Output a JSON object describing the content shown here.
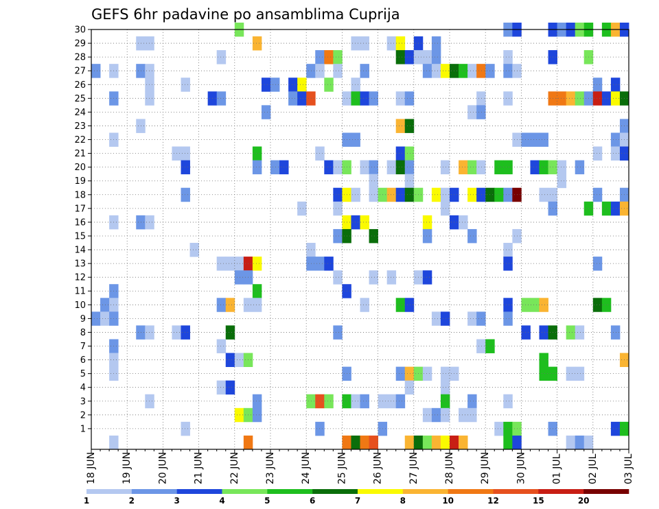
{
  "chart_data": {
    "type": "heatmap",
    "title": "GEFS 6hr padavine po ansamblima Cuprija",
    "xlabel": "",
    "ylabel": "",
    "x_tick_labels": [
      "18 JUN",
      "19 JUN",
      "20 JUN",
      "21 JUN",
      "22 JUN",
      "23 JUN",
      "24 JUN",
      "25 JUN",
      "26 JUN",
      "27 JUN",
      "28 JUN",
      "29 JUN",
      "30 JUN",
      "01 JUL",
      "02 JUL",
      "03 JUL"
    ],
    "y_tick_labels": [
      "1",
      "2",
      "3",
      "4",
      "5",
      "6",
      "7",
      "8",
      "9",
      "10",
      "11",
      "12",
      "13",
      "14",
      "15",
      "16",
      "17",
      "18",
      "19",
      "20",
      "21",
      "22",
      "23",
      "24",
      "25",
      "26",
      "27",
      "28",
      "29",
      "30"
    ],
    "time_steps_per_day": 4,
    "ylim": [
      0,
      30
    ],
    "grid": "dotted",
    "legend": {
      "position": "bottom",
      "labels": [
        "1",
        "2",
        "3",
        "4",
        "5",
        "6",
        "7",
        "8",
        "10",
        "12",
        "15",
        "20"
      ],
      "colors": [
        "#b4c8f0",
        "#6c96e6",
        "#1e46dc",
        "#78e65a",
        "#1ebe1e",
        "#0a6e0a",
        "#fafa00",
        "#fab432",
        "#f07814",
        "#e6501e",
        "#c81e14",
        "#780000"
      ]
    },
    "level_colors": [
      "#b4c8f0",
      "#6c96e6",
      "#1e46dc",
      "#78e65a",
      "#1ebe1e",
      "#0a6e0a",
      "#fafa00",
      "#fab432",
      "#f07814",
      "#e6501e",
      "#c81e14",
      "#780000"
    ],
    "note_cells": "each cell: [member (y), time step index from 18 JUN 00Z, color level index 0-11]",
    "cells": [
      [
        30,
        16,
        3
      ],
      [
        30,
        46,
        1
      ],
      [
        30,
        47,
        2
      ],
      [
        30,
        51,
        2
      ],
      [
        30,
        52,
        1
      ],
      [
        30,
        53,
        2
      ],
      [
        30,
        54,
        3
      ],
      [
        30,
        55,
        4
      ],
      [
        30,
        57,
        4
      ],
      [
        30,
        58,
        7
      ],
      [
        30,
        59,
        2
      ],
      [
        29,
        5,
        0
      ],
      [
        29,
        6,
        0
      ],
      [
        29,
        18,
        7
      ],
      [
        29,
        29,
        0
      ],
      [
        29,
        30,
        0
      ],
      [
        29,
        33,
        0
      ],
      [
        29,
        34,
        6
      ],
      [
        29,
        36,
        2
      ],
      [
        29,
        38,
        1
      ],
      [
        28,
        14,
        0
      ],
      [
        28,
        25,
        1
      ],
      [
        28,
        26,
        8
      ],
      [
        28,
        27,
        3
      ],
      [
        28,
        34,
        5
      ],
      [
        28,
        35,
        2
      ],
      [
        28,
        36,
        0
      ],
      [
        28,
        37,
        0
      ],
      [
        28,
        38,
        1
      ],
      [
        28,
        46,
        0
      ],
      [
        28,
        51,
        2
      ],
      [
        28,
        55,
        3
      ],
      [
        27,
        0,
        1
      ],
      [
        27,
        2,
        0
      ],
      [
        27,
        5,
        1
      ],
      [
        27,
        6,
        0
      ],
      [
        27,
        24,
        1
      ],
      [
        27,
        25,
        0
      ],
      [
        27,
        27,
        0
      ],
      [
        27,
        30,
        1
      ],
      [
        27,
        37,
        1
      ],
      [
        27,
        38,
        0
      ],
      [
        27,
        39,
        6
      ],
      [
        27,
        40,
        5
      ],
      [
        27,
        41,
        4
      ],
      [
        27,
        42,
        0
      ],
      [
        27,
        43,
        8
      ],
      [
        27,
        44,
        1
      ],
      [
        27,
        46,
        1
      ],
      [
        27,
        47,
        0
      ],
      [
        26,
        6,
        0
      ],
      [
        26,
        10,
        0
      ],
      [
        26,
        19,
        2
      ],
      [
        26,
        20,
        1
      ],
      [
        26,
        22,
        2
      ],
      [
        26,
        23,
        6
      ],
      [
        26,
        26,
        3
      ],
      [
        26,
        29,
        0
      ],
      [
        26,
        56,
        1
      ],
      [
        26,
        58,
        2
      ],
      [
        25,
        2,
        1
      ],
      [
        25,
        6,
        0
      ],
      [
        25,
        13,
        2
      ],
      [
        25,
        14,
        1
      ],
      [
        25,
        22,
        1
      ],
      [
        25,
        23,
        2
      ],
      [
        25,
        24,
        9
      ],
      [
        25,
        28,
        0
      ],
      [
        25,
        29,
        4
      ],
      [
        25,
        30,
        2
      ],
      [
        25,
        31,
        1
      ],
      [
        25,
        34,
        0
      ],
      [
        25,
        35,
        1
      ],
      [
        25,
        43,
        0
      ],
      [
        25,
        46,
        0
      ],
      [
        25,
        51,
        8
      ],
      [
        25,
        52,
        8
      ],
      [
        25,
        53,
        7
      ],
      [
        25,
        54,
        3
      ],
      [
        25,
        55,
        1
      ],
      [
        25,
        56,
        10
      ],
      [
        25,
        57,
        2
      ],
      [
        25,
        58,
        6
      ],
      [
        25,
        59,
        5
      ],
      [
        24,
        19,
        1
      ],
      [
        24,
        42,
        0
      ],
      [
        24,
        43,
        1
      ],
      [
        23,
        5,
        0
      ],
      [
        23,
        34,
        7
      ],
      [
        23,
        35,
        5
      ],
      [
        23,
        59,
        1
      ],
      [
        22,
        2,
        0
      ],
      [
        22,
        28,
        1
      ],
      [
        22,
        29,
        1
      ],
      [
        22,
        47,
        0
      ],
      [
        22,
        48,
        1
      ],
      [
        22,
        49,
        1
      ],
      [
        22,
        50,
        1
      ],
      [
        22,
        58,
        1
      ],
      [
        22,
        59,
        0
      ],
      [
        21,
        9,
        0
      ],
      [
        21,
        10,
        0
      ],
      [
        21,
        18,
        4
      ],
      [
        21,
        25,
        0
      ],
      [
        21,
        34,
        2
      ],
      [
        21,
        35,
        3
      ],
      [
        21,
        56,
        0
      ],
      [
        21,
        58,
        0
      ],
      [
        21,
        59,
        2
      ],
      [
        20,
        10,
        2
      ],
      [
        20,
        18,
        1
      ],
      [
        20,
        20,
        1
      ],
      [
        20,
        21,
        2
      ],
      [
        20,
        26,
        2
      ],
      [
        20,
        27,
        0
      ],
      [
        20,
        28,
        3
      ],
      [
        20,
        30,
        0
      ],
      [
        20,
        31,
        1
      ],
      [
        20,
        33,
        0
      ],
      [
        20,
        34,
        5
      ],
      [
        20,
        35,
        1
      ],
      [
        20,
        39,
        0
      ],
      [
        20,
        41,
        7
      ],
      [
        20,
        42,
        3
      ],
      [
        20,
        43,
        0
      ],
      [
        20,
        45,
        4
      ],
      [
        20,
        46,
        4
      ],
      [
        20,
        49,
        2
      ],
      [
        20,
        50,
        4
      ],
      [
        20,
        51,
        3
      ],
      [
        20,
        52,
        0
      ],
      [
        20,
        54,
        1
      ],
      [
        19,
        31,
        0
      ],
      [
        19,
        35,
        0
      ],
      [
        19,
        52,
        0
      ],
      [
        18,
        10,
        1
      ],
      [
        18,
        27,
        2
      ],
      [
        18,
        28,
        6
      ],
      [
        18,
        29,
        0
      ],
      [
        18,
        31,
        0
      ],
      [
        18,
        32,
        3
      ],
      [
        18,
        33,
        7
      ],
      [
        18,
        34,
        2
      ],
      [
        18,
        35,
        5
      ],
      [
        18,
        36,
        3
      ],
      [
        18,
        38,
        6
      ],
      [
        18,
        39,
        0
      ],
      [
        18,
        40,
        2
      ],
      [
        18,
        42,
        6
      ],
      [
        18,
        43,
        2
      ],
      [
        18,
        44,
        5
      ],
      [
        18,
        45,
        4
      ],
      [
        18,
        46,
        1
      ],
      [
        18,
        47,
        11
      ],
      [
        18,
        50,
        0
      ],
      [
        18,
        51,
        0
      ],
      [
        18,
        56,
        1
      ],
      [
        18,
        59,
        1
      ],
      [
        17,
        23,
        0
      ],
      [
        17,
        27,
        0
      ],
      [
        17,
        39,
        0
      ],
      [
        17,
        51,
        1
      ],
      [
        17,
        55,
        4
      ],
      [
        17,
        57,
        4
      ],
      [
        17,
        58,
        2
      ],
      [
        17,
        59,
        7
      ],
      [
        16,
        2,
        0
      ],
      [
        16,
        5,
        1
      ],
      [
        16,
        6,
        0
      ],
      [
        16,
        28,
        6
      ],
      [
        16,
        29,
        2
      ],
      [
        16,
        30,
        6
      ],
      [
        16,
        37,
        6
      ],
      [
        16,
        40,
        2
      ],
      [
        16,
        41,
        0
      ],
      [
        15,
        27,
        1
      ],
      [
        15,
        28,
        5
      ],
      [
        15,
        31,
        5
      ],
      [
        15,
        37,
        1
      ],
      [
        15,
        42,
        1
      ],
      [
        15,
        47,
        0
      ],
      [
        14,
        11,
        0
      ],
      [
        14,
        24,
        0
      ],
      [
        14,
        46,
        0
      ],
      [
        13,
        14,
        0
      ],
      [
        13,
        15,
        0
      ],
      [
        13,
        16,
        0
      ],
      [
        13,
        17,
        10
      ],
      [
        13,
        18,
        6
      ],
      [
        13,
        24,
        1
      ],
      [
        13,
        25,
        1
      ],
      [
        13,
        26,
        2
      ],
      [
        13,
        46,
        2
      ],
      [
        13,
        56,
        1
      ],
      [
        12,
        16,
        1
      ],
      [
        12,
        17,
        1
      ],
      [
        12,
        27,
        0
      ],
      [
        12,
        31,
        0
      ],
      [
        12,
        33,
        0
      ],
      [
        12,
        36,
        0
      ],
      [
        12,
        37,
        2
      ],
      [
        11,
        2,
        1
      ],
      [
        11,
        18,
        4
      ],
      [
        11,
        28,
        2
      ],
      [
        10,
        1,
        1
      ],
      [
        10,
        2,
        0
      ],
      [
        10,
        14,
        1
      ],
      [
        10,
        15,
        7
      ],
      [
        10,
        17,
        0
      ],
      [
        10,
        18,
        0
      ],
      [
        10,
        30,
        0
      ],
      [
        10,
        34,
        4
      ],
      [
        10,
        35,
        2
      ],
      [
        10,
        46,
        2
      ],
      [
        10,
        48,
        3
      ],
      [
        10,
        49,
        3
      ],
      [
        10,
        50,
        7
      ],
      [
        10,
        56,
        5
      ],
      [
        10,
        57,
        4
      ],
      [
        9,
        0,
        1
      ],
      [
        9,
        1,
        0
      ],
      [
        9,
        2,
        1
      ],
      [
        9,
        38,
        0
      ],
      [
        9,
        39,
        2
      ],
      [
        9,
        42,
        0
      ],
      [
        9,
        43,
        1
      ],
      [
        9,
        46,
        1
      ],
      [
        8,
        5,
        1
      ],
      [
        8,
        6,
        0
      ],
      [
        8,
        9,
        0
      ],
      [
        8,
        10,
        2
      ],
      [
        8,
        15,
        5
      ],
      [
        8,
        27,
        1
      ],
      [
        8,
        48,
        2
      ],
      [
        8,
        50,
        2
      ],
      [
        8,
        51,
        5
      ],
      [
        8,
        53,
        3
      ],
      [
        8,
        54,
        0
      ],
      [
        8,
        58,
        1
      ],
      [
        7,
        2,
        1
      ],
      [
        7,
        14,
        0
      ],
      [
        7,
        43,
        0
      ],
      [
        7,
        44,
        4
      ],
      [
        6,
        2,
        0
      ],
      [
        6,
        15,
        2
      ],
      [
        6,
        16,
        0
      ],
      [
        6,
        17,
        3
      ],
      [
        6,
        50,
        4
      ],
      [
        6,
        59,
        7
      ],
      [
        5,
        2,
        0
      ],
      [
        5,
        28,
        1
      ],
      [
        5,
        34,
        1
      ],
      [
        5,
        35,
        7
      ],
      [
        5,
        36,
        3
      ],
      [
        5,
        37,
        0
      ],
      [
        5,
        39,
        0
      ],
      [
        5,
        40,
        0
      ],
      [
        5,
        50,
        4
      ],
      [
        5,
        51,
        4
      ],
      [
        5,
        53,
        0
      ],
      [
        5,
        54,
        0
      ],
      [
        4,
        14,
        0
      ],
      [
        4,
        15,
        2
      ],
      [
        4,
        35,
        0
      ],
      [
        4,
        39,
        0
      ],
      [
        3,
        6,
        0
      ],
      [
        3,
        18,
        1
      ],
      [
        3,
        24,
        3
      ],
      [
        3,
        25,
        9
      ],
      [
        3,
        26,
        3
      ],
      [
        3,
        28,
        4
      ],
      [
        3,
        29,
        0
      ],
      [
        3,
        30,
        1
      ],
      [
        3,
        32,
        0
      ],
      [
        3,
        33,
        0
      ],
      [
        3,
        34,
        1
      ],
      [
        3,
        39,
        4
      ],
      [
        3,
        42,
        1
      ],
      [
        3,
        46,
        0
      ],
      [
        2,
        16,
        6
      ],
      [
        2,
        17,
        3
      ],
      [
        2,
        18,
        1
      ],
      [
        2,
        37,
        0
      ],
      [
        2,
        38,
        1
      ],
      [
        2,
        39,
        0
      ],
      [
        2,
        41,
        0
      ],
      [
        2,
        42,
        0
      ],
      [
        1,
        10,
        0
      ],
      [
        1,
        25,
        1
      ],
      [
        1,
        32,
        1
      ],
      [
        1,
        45,
        0
      ],
      [
        1,
        46,
        4
      ],
      [
        1,
        47,
        3
      ],
      [
        1,
        51,
        1
      ],
      [
        1,
        58,
        2
      ],
      [
        1,
        59,
        4
      ],
      [
        0,
        2,
        0
      ],
      [
        0,
        17,
        8
      ],
      [
        0,
        28,
        8
      ],
      [
        0,
        29,
        5
      ],
      [
        0,
        30,
        8
      ],
      [
        0,
        31,
        9
      ],
      [
        0,
        35,
        7
      ],
      [
        0,
        36,
        5
      ],
      [
        0,
        37,
        3
      ],
      [
        0,
        38,
        7
      ],
      [
        0,
        39,
        6
      ],
      [
        0,
        40,
        10
      ],
      [
        0,
        41,
        7
      ],
      [
        0,
        46,
        4
      ],
      [
        0,
        47,
        2
      ],
      [
        0,
        53,
        0
      ],
      [
        0,
        54,
        1
      ],
      [
        0,
        55,
        0
      ]
    ]
  }
}
